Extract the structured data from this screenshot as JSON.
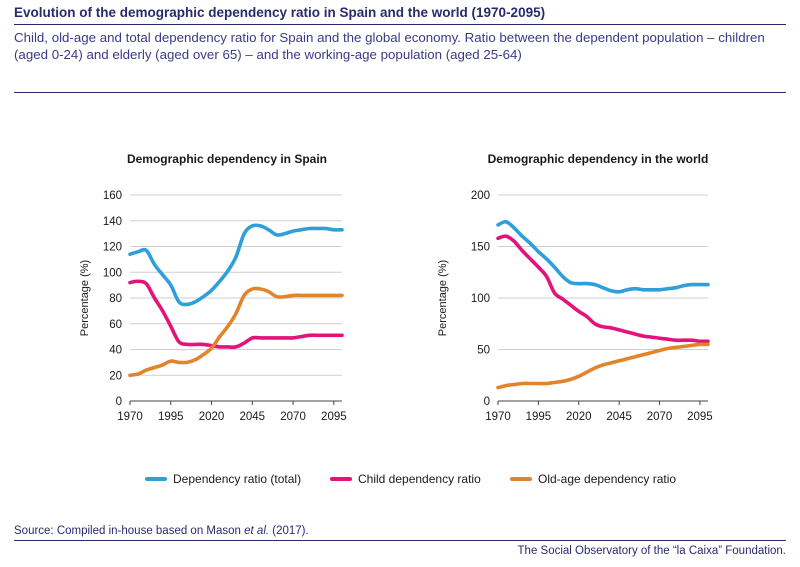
{
  "header": {
    "title": "Evolution of the demographic dependency ratio in Spain and the world (1970-2095)",
    "subtitle": "Child, old-age and total dependency ratio for Spain and the global economy. Ratio between the dependent population – children (aged 0-24) and elderly (aged over 65) – and the working-age population (aged 25-64)"
  },
  "footer": {
    "source_prefix": "Source: Compiled in-house based on Mason ",
    "source_italic": "et al.",
    "source_suffix": " (2017).",
    "credit": "The Social Observatory of the “la Caixa” Foundation."
  },
  "colors": {
    "total": "#2e9fdb",
    "child": "#e4127a",
    "old_age": "#e1842b",
    "title": "#2a2a6e"
  },
  "legend": [
    {
      "key": "total",
      "label": "Dependency ratio (total)"
    },
    {
      "key": "child",
      "label": "Child dependency ratio"
    },
    {
      "key": "old_age",
      "label": "Old-age dependency ratio"
    }
  ],
  "chart_data": [
    {
      "type": "line",
      "title": "Demographic dependency in Spain",
      "ylabel": "Percentage (%)",
      "xlabel": "",
      "xlim": [
        1970,
        2100
      ],
      "ylim": [
        0,
        160
      ],
      "xticks": [
        1970,
        1995,
        2020,
        2045,
        2070,
        2095
      ],
      "yticks": [
        0,
        20,
        40,
        60,
        80,
        100,
        120,
        140,
        160
      ],
      "grid": true,
      "x": [
        1970,
        1975,
        1980,
        1985,
        1990,
        1995,
        2000,
        2005,
        2010,
        2015,
        2020,
        2025,
        2030,
        2035,
        2040,
        2045,
        2050,
        2055,
        2060,
        2065,
        2070,
        2075,
        2080,
        2085,
        2090,
        2095,
        2100
      ],
      "series": [
        {
          "name": "Dependency ratio (total)",
          "key": "total",
          "values": [
            114,
            116,
            117,
            106,
            98,
            90,
            77,
            75,
            77,
            81,
            86,
            93,
            101,
            112,
            130,
            136,
            136,
            133,
            129,
            130,
            132,
            133,
            134,
            134,
            134,
            133,
            133
          ]
        },
        {
          "name": "Child dependency ratio",
          "key": "child",
          "values": [
            92,
            93,
            91,
            80,
            70,
            58,
            46,
            44,
            44,
            44,
            43,
            42,
            42,
            42,
            45,
            49,
            49,
            49,
            49,
            49,
            49,
            50,
            51,
            51,
            51,
            51,
            51
          ]
        },
        {
          "name": "Old-age dependency ratio",
          "key": "old_age",
          "values": [
            20,
            21,
            24,
            26,
            28,
            31,
            30,
            30,
            32,
            36,
            41,
            50,
            58,
            68,
            82,
            87,
            87,
            85,
            81,
            81,
            82,
            82,
            82,
            82,
            82,
            82,
            82
          ]
        }
      ]
    },
    {
      "type": "line",
      "title": "Demographic dependency in the world",
      "ylabel": "Percentage (%)",
      "xlabel": "",
      "xlim": [
        1970,
        2100
      ],
      "ylim": [
        0,
        200
      ],
      "xticks": [
        1970,
        1995,
        2020,
        2045,
        2070,
        2095
      ],
      "yticks": [
        0,
        50,
        100,
        150,
        200
      ],
      "grid": true,
      "x": [
        1970,
        1975,
        1980,
        1985,
        1990,
        1995,
        2000,
        2005,
        2010,
        2015,
        2020,
        2025,
        2030,
        2035,
        2040,
        2045,
        2050,
        2055,
        2060,
        2065,
        2070,
        2075,
        2080,
        2085,
        2090,
        2095,
        2100
      ],
      "series": [
        {
          "name": "Dependency ratio (total)",
          "key": "total",
          "values": [
            171,
            174,
            168,
            160,
            153,
            145,
            138,
            130,
            121,
            115,
            114,
            114,
            113,
            110,
            107,
            106,
            108,
            109,
            108,
            108,
            108,
            109,
            110,
            112,
            113,
            113,
            113
          ]
        },
        {
          "name": "Child dependency ratio",
          "key": "child",
          "values": [
            158,
            160,
            155,
            146,
            138,
            130,
            121,
            105,
            99,
            93,
            87,
            82,
            75,
            72,
            71,
            69,
            67,
            65,
            63,
            62,
            61,
            60,
            59,
            59,
            59,
            58,
            58
          ]
        },
        {
          "name": "Old-age dependency ratio",
          "key": "old_age",
          "values": [
            13,
            15,
            16,
            17,
            17,
            17,
            17,
            18,
            19,
            21,
            24,
            28,
            32,
            35,
            37,
            39,
            41,
            43,
            45,
            47,
            49,
            51,
            52,
            53,
            54,
            55,
            55
          ]
        }
      ]
    }
  ]
}
